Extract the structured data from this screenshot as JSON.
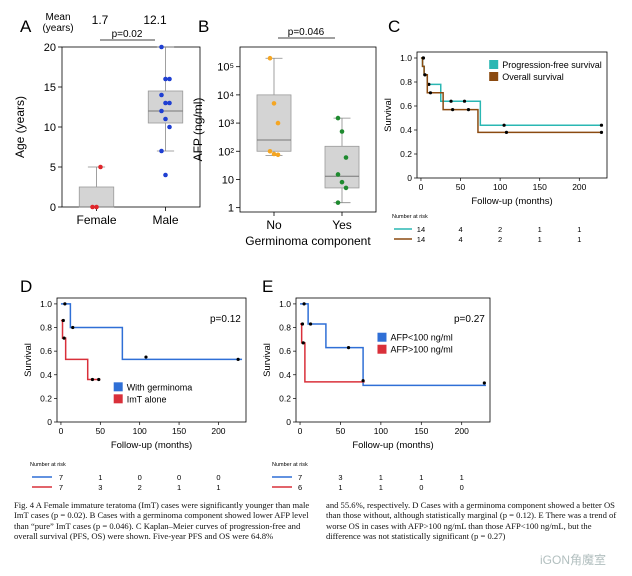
{
  "panels": {
    "A": {
      "letter": "A",
      "mean_label_line1": "Mean",
      "mean_label_line2": "(years)",
      "mean_female": "1.7",
      "mean_male": "12.1",
      "pvalue": "p=0.02"
    },
    "B": {
      "letter": "B",
      "pvalue": "p=0.046"
    },
    "C": {
      "letter": "C",
      "risk_title": "Number at risk"
    },
    "D": {
      "letter": "D",
      "pvalue": "p=0.12",
      "risk_title": "Number at risk"
    },
    "E": {
      "letter": "E",
      "pvalue": "p=0.27",
      "risk_title": "Number at risk"
    }
  },
  "colors": {
    "female": "#e0262b",
    "male": "#1f3fd2",
    "afp_no": "#f5a623",
    "afp_yes": "#1e8a2f",
    "pfs": "#2ab7b3",
    "os": "#8b4a10",
    "blue": "#2f6fd6",
    "red": "#d9303a",
    "box": "#d4d4d4"
  },
  "chart_data": [
    {
      "type": "box",
      "panel": "A",
      "ylabel": "Age (years)",
      "ylim": [
        0,
        20
      ],
      "yticks": [
        0,
        5,
        10,
        15,
        20
      ],
      "categories": [
        "Female",
        "Male"
      ],
      "boxes": [
        {
          "category": "Female",
          "q1": 0,
          "median": 0,
          "q3": 2.5,
          "whisker_low": 0,
          "whisker_high": 5,
          "points": [
            0,
            0,
            5
          ]
        },
        {
          "category": "Male",
          "q1": 10.5,
          "median": 12,
          "q3": 14.5,
          "whisker_low": 7,
          "whisker_high": 20,
          "points": [
            20,
            16,
            16,
            14,
            13,
            13,
            12,
            11,
            10,
            7,
            4
          ]
        }
      ]
    },
    {
      "type": "box",
      "panel": "B",
      "yscale": "log",
      "ylabel": "AFP (ng/ml)",
      "xlabel": "Germinoma component",
      "ylim": [
        0.7,
        500000
      ],
      "yticks": [
        1,
        10,
        100,
        1000,
        10000,
        100000
      ],
      "ytick_labels": [
        "1",
        "10",
        "10²",
        "10³",
        "10⁴",
        "10⁵"
      ],
      "categories": [
        "No",
        "Yes"
      ],
      "boxes": [
        {
          "category": "No",
          "q1": 100,
          "median": 250,
          "q3": 10000,
          "whisker_low": 70,
          "whisker_high": 200000,
          "points": [
            200000,
            5000,
            1000,
            100,
            80,
            75
          ]
        },
        {
          "category": "Yes",
          "q1": 5,
          "median": 13,
          "q3": 150,
          "whisker_low": 1.5,
          "whisker_high": 1500,
          "points": [
            1500,
            500,
            60,
            15,
            8,
            5,
            1.5
          ]
        }
      ]
    },
    {
      "type": "km",
      "panel": "C",
      "xlabel": "Follow-up (months)",
      "ylabel": "Survival",
      "xlim": [
        -5,
        235
      ],
      "xticks": [
        0,
        50,
        100,
        150,
        200
      ],
      "ylim": [
        0,
        1.05
      ],
      "yticks": [
        0,
        0.2,
        0.4,
        0.6,
        0.8,
        1.0
      ],
      "yticklabels": [
        "0",
        "0.2",
        "0.4",
        "0.6",
        "0.8",
        "1.0"
      ],
      "legend": "top-right",
      "series": [
        {
          "name": "Progression-free survival",
          "color": "#2ab7b3",
          "legendStyle": "square",
          "steps": [
            [
              0,
              1.0
            ],
            [
              2,
              0.93
            ],
            [
              4,
              0.86
            ],
            [
              8,
              0.78
            ],
            [
              25,
              0.64
            ],
            [
              75,
              0.44
            ],
            [
              230,
              0.44
            ]
          ],
          "censored": [
            [
              3,
              1.0
            ],
            [
              5,
              0.86
            ],
            [
              10,
              0.78
            ],
            [
              38,
              0.64
            ],
            [
              55,
              0.64
            ],
            [
              105,
              0.44
            ],
            [
              228,
              0.44
            ]
          ]
        },
        {
          "name": "Overall survival",
          "color": "#8b4a10",
          "legendStyle": "square",
          "steps": [
            [
              0,
              1.0
            ],
            [
              2,
              0.93
            ],
            [
              4,
              0.86
            ],
            [
              8,
              0.71
            ],
            [
              28,
              0.57
            ],
            [
              72,
              0.38
            ],
            [
              230,
              0.38
            ]
          ],
          "censored": [
            [
              3,
              1.0
            ],
            [
              5,
              0.86
            ],
            [
              12,
              0.71
            ],
            [
              40,
              0.57
            ],
            [
              60,
              0.57
            ],
            [
              108,
              0.38
            ],
            [
              228,
              0.38
            ]
          ]
        }
      ],
      "risk_times": [
        0,
        50,
        100,
        150,
        200
      ],
      "risk_rows": [
        {
          "color": "#2ab7b3",
          "values": [
            "14",
            "4",
            "2",
            "1",
            "1"
          ]
        },
        {
          "color": "#8b4a10",
          "values": [
            "14",
            "4",
            "2",
            "1",
            "1"
          ]
        }
      ]
    },
    {
      "type": "km",
      "panel": "D",
      "xlabel": "Follow-up (months)",
      "ylabel": "Survival",
      "xlim": [
        -5,
        235
      ],
      "xticks": [
        0,
        50,
        100,
        150,
        200
      ],
      "ylim": [
        0,
        1.05
      ],
      "yticks": [
        0,
        0.2,
        0.4,
        0.6,
        0.8,
        1.0
      ],
      "yticklabels": [
        "0",
        "0.2",
        "0.4",
        "0.6",
        "0.8",
        "1.0"
      ],
      "legend": "bottom-right",
      "series": [
        {
          "name": "With germinoma",
          "color": "#2f6fd6",
          "legendStyle": "square",
          "steps": [
            [
              0,
              1.0
            ],
            [
              12,
              0.8
            ],
            [
              78,
              0.53
            ],
            [
              230,
              0.53
            ]
          ],
          "censored": [
            [
              5,
              1.0
            ],
            [
              15,
              0.8
            ],
            [
              108,
              0.55
            ],
            [
              225,
              0.53
            ]
          ]
        },
        {
          "name": "ImT alone",
          "color": "#d9303a",
          "legendStyle": "square",
          "steps": [
            [
              0,
              0.86
            ],
            [
              2,
              0.71
            ],
            [
              6,
              0.53
            ],
            [
              34,
              0.36
            ],
            [
              50,
              0.36
            ]
          ],
          "censored": [
            [
              3,
              0.86
            ],
            [
              4,
              0.71
            ],
            [
              40,
              0.36
            ],
            [
              48,
              0.36
            ]
          ]
        }
      ],
      "risk_times": [
        0,
        50,
        100,
        150,
        200
      ],
      "risk_rows": [
        {
          "color": "#2f6fd6",
          "values": [
            "7",
            "1",
            "0",
            "0",
            "0"
          ]
        },
        {
          "color": "#d9303a",
          "values": [
            "7",
            "3",
            "2",
            "1",
            "1"
          ]
        }
      ]
    },
    {
      "type": "km",
      "panel": "E",
      "xlabel": "Follow-up (months)",
      "ylabel": "Survival",
      "xlim": [
        -5,
        235
      ],
      "xticks": [
        0,
        50,
        100,
        150,
        200
      ],
      "ylim": [
        0,
        1.05
      ],
      "yticks": [
        0,
        0.2,
        0.4,
        0.6,
        0.8,
        1.0
      ],
      "yticklabels": [
        "0",
        "0.2",
        "0.4",
        "0.6",
        "0.8",
        "1.0"
      ],
      "legend": "center-right",
      "series": [
        {
          "name": "AFP<100 ng/ml",
          "color": "#2f6fd6",
          "legendStyle": "square",
          "steps": [
            [
              0,
              1.0
            ],
            [
              10,
              0.83
            ],
            [
              32,
              0.63
            ],
            [
              78,
              0.31
            ],
            [
              230,
              0.31
            ]
          ],
          "censored": [
            [
              5,
              1.0
            ],
            [
              13,
              0.83
            ],
            [
              60,
              0.63
            ],
            [
              228,
              0.33
            ]
          ]
        },
        {
          "name": "AFP>100 ng/ml",
          "color": "#d9303a",
          "legendStyle": "square",
          "steps": [
            [
              0,
              0.83
            ],
            [
              2,
              0.67
            ],
            [
              6,
              0.34
            ],
            [
              80,
              0.34
            ]
          ],
          "censored": [
            [
              3,
              0.83
            ],
            [
              4,
              0.67
            ],
            [
              78,
              0.35
            ]
          ]
        }
      ],
      "risk_times": [
        0,
        50,
        100,
        150,
        200
      ],
      "risk_rows": [
        {
          "color": "#2f6fd6",
          "values": [
            "7",
            "3",
            "1",
            "1",
            "1"
          ]
        },
        {
          "color": "#d9303a",
          "values": [
            "6",
            "1",
            "1",
            "0",
            "0"
          ]
        }
      ]
    }
  ],
  "caption": {
    "col1": "Fig. 4  A Female immature teratoma (ImT) cases were significantly younger than male ImT cases (p = 0.02). B Cases with a germinoma component showed lower AFP level than “pure” ImT cases (p = 0.046). C Kaplan–Meier curves of progression-free and overall survival (PFS, OS) were shown. Five-year PFS and OS were 64.8%",
    "col2": "and 55.6%, respectively. D Cases with a germinoma component showed a better OS than those without, although statistically marginal (p = 0.12). E There was a trend of worse OS in cases with AFP>100 ng/mL than those AFP<100 ng/mL, but the difference was not statistically significant (p = 0.27)"
  },
  "watermark": "iGON角魔室"
}
